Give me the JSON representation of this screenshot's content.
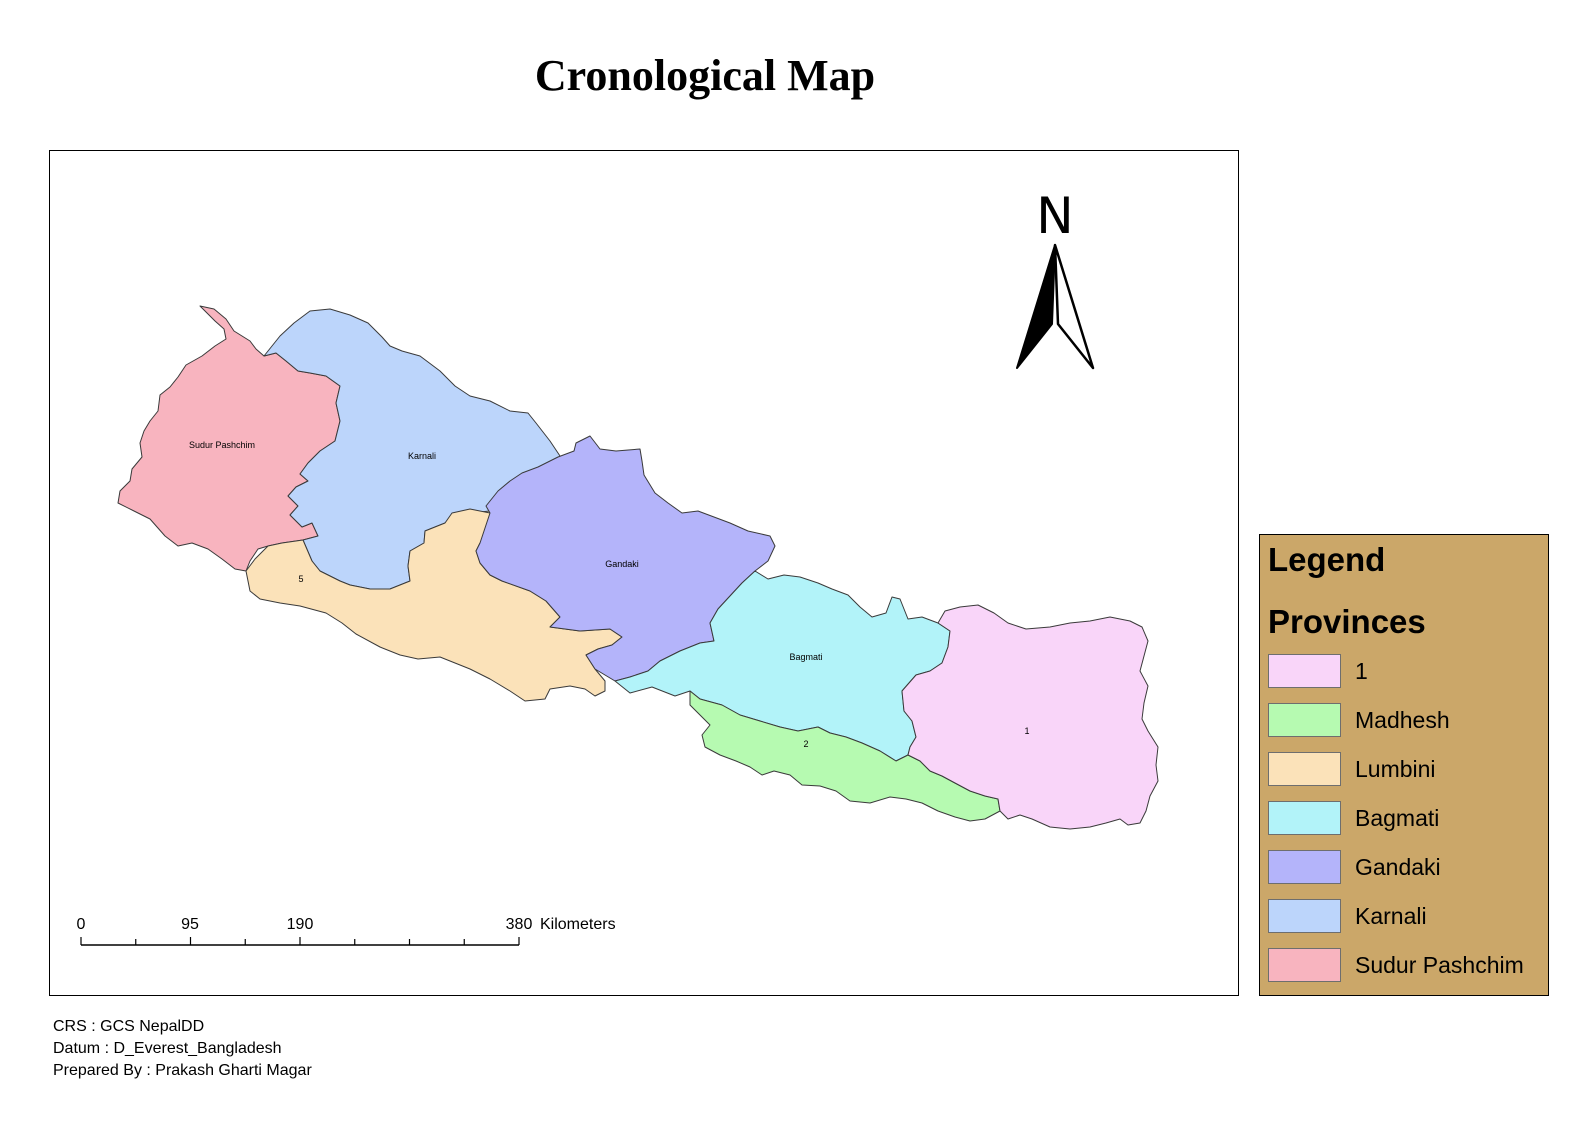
{
  "title": "Cronological Map",
  "provinces": [
    {
      "id": "sudur",
      "label": "Sudur Pashchim",
      "color": "#f8b4bf"
    },
    {
      "id": "karnali",
      "label": "Karnali",
      "color": "#bcd5fb"
    },
    {
      "id": "lumbini",
      "label": "5",
      "color": "#fbe2b9"
    },
    {
      "id": "gandaki",
      "label": "Gandaki",
      "color": "#b4b4fa"
    },
    {
      "id": "bagmati",
      "label": "Bagmati",
      "color": "#b2f3f9"
    },
    {
      "id": "madhesh",
      "label": "2",
      "color": "#b6fab1"
    },
    {
      "id": "p1",
      "label": "1",
      "color": "#f9d5f9"
    }
  ],
  "north_label": "N",
  "scale_bar": {
    "ticks": [
      "0",
      "95",
      "190",
      "380"
    ],
    "unit": "Kilometers"
  },
  "legend": {
    "title": "Legend",
    "subtitle": "Provinces",
    "items": [
      {
        "label": "1",
        "color": "#f9d5f9"
      },
      {
        "label": "Madhesh",
        "color": "#b6fab1"
      },
      {
        "label": "Lumbini",
        "color": "#fbe2b9"
      },
      {
        "label": "Bagmati",
        "color": "#b2f3f9"
      },
      {
        "label": "Gandaki",
        "color": "#b4b4fa"
      },
      {
        "label": "Karnali",
        "color": "#bcd5fb"
      },
      {
        "label": "Sudur Pashchim",
        "color": "#f8b4bf"
      }
    ]
  },
  "meta": {
    "crs": "CRS : GCS NepalDD",
    "datum": "Datum : D_Everest_Bangladesh",
    "author": "Prepared By : Prakash Gharti Magar"
  }
}
